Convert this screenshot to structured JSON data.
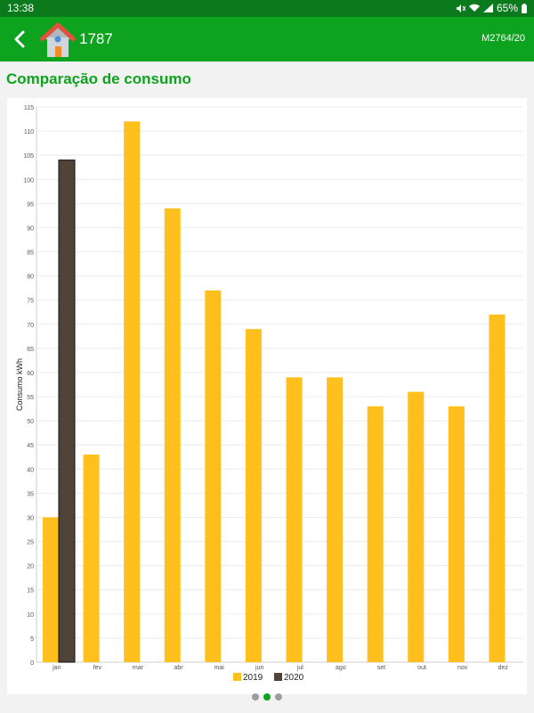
{
  "status_bar": {
    "time": "13:38",
    "battery": "65%"
  },
  "app_bar": {
    "title": "1787",
    "code": "M2764/20"
  },
  "section": {
    "title": "Comparação de consumo"
  },
  "pager": {
    "pages": 3,
    "active": 1
  },
  "colors": {
    "primary": "#0da31f",
    "series_2019": "#ffc01e",
    "series_2020": "#4f4437"
  },
  "chart_data": {
    "type": "bar",
    "ylabel": "Consumo kWh",
    "ylim": [
      0,
      115
    ],
    "yticks": [
      0,
      5,
      10,
      15,
      20,
      25,
      30,
      35,
      40,
      45,
      50,
      55,
      60,
      65,
      70,
      75,
      80,
      85,
      90,
      95,
      100,
      105,
      110,
      115
    ],
    "categories": [
      "jan",
      "fev",
      "mar",
      "abr",
      "mai",
      "jun",
      "jul",
      "ago",
      "set",
      "out",
      "nov",
      "dez"
    ],
    "series": [
      {
        "name": "2019",
        "color": "#ffc01e",
        "values": [
          30,
          43,
          112,
          94,
          77,
          69,
          59,
          59,
          53,
          56,
          53,
          72
        ]
      },
      {
        "name": "2020",
        "color": "#4f4437",
        "values": [
          104,
          null,
          null,
          null,
          null,
          null,
          null,
          null,
          null,
          null,
          null,
          null
        ]
      }
    ],
    "legend": "bottom",
    "grid": true
  }
}
